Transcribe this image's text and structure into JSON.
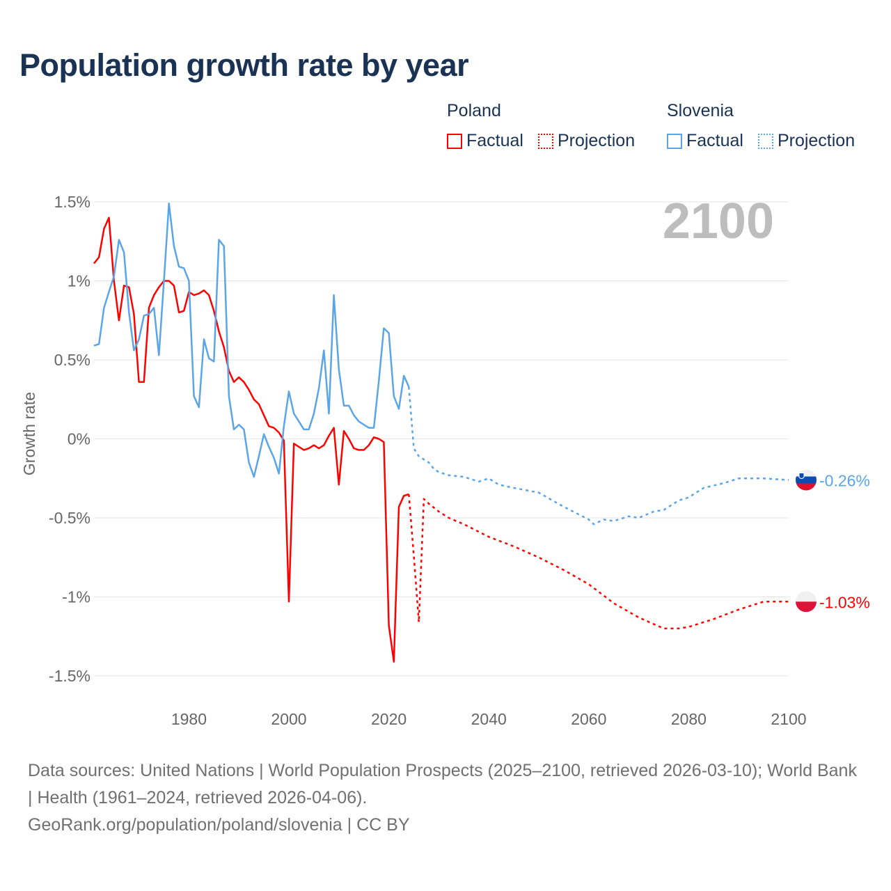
{
  "chart_data": {
    "type": "line",
    "title": "Population growth rate by year",
    "ylabel": "Growth rate",
    "xlabel": "",
    "xlim": [
      1961,
      2100
    ],
    "ylim": [
      -1.5,
      1.5
    ],
    "x_ticks": [
      1980,
      2000,
      2020,
      2040,
      2060,
      2080,
      2100
    ],
    "y_ticks": [
      {
        "value": 1.5,
        "label": "1.5%"
      },
      {
        "value": 1,
        "label": "1%"
      },
      {
        "value": 0.5,
        "label": "0.5%"
      },
      {
        "value": 0,
        "label": "0%"
      },
      {
        "value": -0.5,
        "label": "-0.5%"
      },
      {
        "value": -1,
        "label": "-1%"
      },
      {
        "value": -1.5,
        "label": "-1.5%"
      }
    ],
    "grid": true,
    "year_display": "2100",
    "legend": {
      "placement": "top-right",
      "groups": [
        {
          "name": "Poland",
          "items": [
            "Factual",
            "Projection"
          ],
          "color": "#ff0000"
        },
        {
          "name": "Slovenia",
          "items": [
            "Factual",
            "Projection"
          ],
          "color": "#5aa5e8"
        }
      ]
    },
    "series": [
      {
        "name": "Poland Factual",
        "color": "#ff0000",
        "style": "solid",
        "x": [
          1961,
          1962,
          1963,
          1964,
          1965,
          1966,
          1967,
          1968,
          1969,
          1970,
          1971,
          1972,
          1973,
          1974,
          1975,
          1976,
          1977,
          1978,
          1979,
          1980,
          1981,
          1982,
          1983,
          1984,
          1985,
          1986,
          1987,
          1988,
          1989,
          1990,
          1991,
          1992,
          1993,
          1994,
          1995,
          1996,
          1997,
          1998,
          1999,
          2000,
          2001,
          2002,
          2003,
          2004,
          2005,
          2006,
          2007,
          2008,
          2009,
          2010,
          2011,
          2012,
          2013,
          2014,
          2015,
          2016,
          2017,
          2018,
          2019,
          2020,
          2021,
          2022,
          2023,
          2024
        ],
        "values": [
          1.11,
          1.15,
          1.33,
          1.4,
          1.0,
          0.75,
          0.97,
          0.96,
          0.79,
          0.36,
          0.36,
          0.83,
          0.91,
          0.96,
          1.0,
          1.0,
          0.97,
          0.8,
          0.81,
          0.93,
          0.91,
          0.92,
          0.94,
          0.91,
          0.81,
          0.68,
          0.58,
          0.43,
          0.36,
          0.39,
          0.36,
          0.31,
          0.25,
          0.22,
          0.15,
          0.08,
          0.07,
          0.04,
          -0.01,
          -1.03,
          -0.03,
          -0.05,
          -0.07,
          -0.06,
          -0.04,
          -0.06,
          -0.04,
          0.02,
          0.07,
          -0.29,
          0.05,
          0.0,
          -0.06,
          -0.07,
          -0.07,
          -0.04,
          0.01,
          0.0,
          -0.02,
          -1.18,
          -1.41,
          -0.43,
          -0.36,
          -0.35
        ]
      },
      {
        "name": "Poland Projection",
        "color": "#ff0000",
        "style": "dotted",
        "x": [
          2024,
          2025,
          2026,
          2027,
          2028,
          2030,
          2032,
          2035,
          2040,
          2045,
          2050,
          2055,
          2060,
          2065,
          2070,
          2075,
          2078,
          2080,
          2085,
          2090,
          2095,
          2100
        ],
        "values": [
          -0.35,
          -0.74,
          -1.16,
          -0.38,
          -0.41,
          -0.46,
          -0.5,
          -0.54,
          -0.62,
          -0.68,
          -0.75,
          -0.83,
          -0.92,
          -1.04,
          -1.13,
          -1.2,
          -1.2,
          -1.19,
          -1.14,
          -1.08,
          -1.03,
          -1.03
        ]
      },
      {
        "name": "Slovenia Factual",
        "color": "#5aa5e8",
        "style": "solid",
        "x": [
          1961,
          1962,
          1963,
          1964,
          1965,
          1966,
          1967,
          1968,
          1969,
          1970,
          1971,
          1972,
          1973,
          1974,
          1975,
          1976,
          1977,
          1978,
          1979,
          1980,
          1981,
          1982,
          1983,
          1984,
          1985,
          1986,
          1987,
          1988,
          1989,
          1990,
          1991,
          1992,
          1993,
          1994,
          1995,
          1996,
          1997,
          1998,
          1999,
          2000,
          2001,
          2002,
          2003,
          2004,
          2005,
          2006,
          2007,
          2008,
          2009,
          2010,
          2011,
          2012,
          2013,
          2014,
          2015,
          2016,
          2017,
          2018,
          2019,
          2020,
          2021,
          2022,
          2023,
          2024
        ],
        "values": [
          0.59,
          0.6,
          0.83,
          0.93,
          1.03,
          1.26,
          1.18,
          0.8,
          0.56,
          0.63,
          0.78,
          0.79,
          0.83,
          0.53,
          1.0,
          1.49,
          1.22,
          1.09,
          1.08,
          1.0,
          0.27,
          0.2,
          0.63,
          0.51,
          0.49,
          1.26,
          1.22,
          0.27,
          0.06,
          0.09,
          0.06,
          -0.15,
          -0.24,
          -0.11,
          0.03,
          -0.05,
          -0.12,
          -0.22,
          0.08,
          0.3,
          0.16,
          0.11,
          0.06,
          0.06,
          0.16,
          0.32,
          0.56,
          0.16,
          0.91,
          0.44,
          0.21,
          0.21,
          0.15,
          0.11,
          0.09,
          0.07,
          0.07,
          0.37,
          0.7,
          0.67,
          0.27,
          0.19,
          0.4,
          0.33
        ]
      },
      {
        "name": "Slovenia Projection",
        "color": "#5aa5e8",
        "style": "dotted",
        "x": [
          2024,
          2025,
          2026,
          2028,
          2029,
          2030,
          2032,
          2035,
          2038,
          2040,
          2042,
          2045,
          2050,
          2055,
          2060,
          2061,
          2063,
          2065,
          2068,
          2070,
          2073,
          2075,
          2078,
          2080,
          2083,
          2087,
          2090,
          2095,
          2100
        ],
        "values": [
          0.33,
          -0.06,
          -0.11,
          -0.15,
          -0.19,
          -0.21,
          -0.23,
          -0.24,
          -0.27,
          -0.25,
          -0.29,
          -0.31,
          -0.34,
          -0.43,
          -0.51,
          -0.54,
          -0.51,
          -0.52,
          -0.49,
          -0.5,
          -0.46,
          -0.45,
          -0.39,
          -0.37,
          -0.31,
          -0.28,
          -0.25,
          -0.25,
          -0.26
        ]
      }
    ],
    "end_labels": [
      {
        "country": "Slovenia",
        "label": "-0.26%",
        "value": -0.26,
        "color": "#5aa5e8"
      },
      {
        "country": "Poland",
        "label": "-1.03%",
        "value": -1.03,
        "color": "#ff0000"
      }
    ]
  },
  "footer": {
    "sources": "Data sources: United Nations | World Population Prospects (2025–2100, retrieved 2026-03-10); World Bank | Health (1961–2024, retrieved 2026-04-06).",
    "credit": "GeoRank.org/population/poland/slovenia | CC BY"
  }
}
